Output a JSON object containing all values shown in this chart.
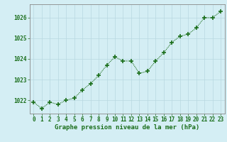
{
  "x": [
    0,
    1,
    2,
    3,
    4,
    5,
    6,
    7,
    8,
    9,
    10,
    11,
    12,
    13,
    14,
    15,
    16,
    17,
    18,
    19,
    20,
    21,
    22,
    23
  ],
  "y": [
    1021.9,
    1021.6,
    1021.9,
    1021.8,
    1022.0,
    1022.1,
    1022.5,
    1022.8,
    1023.2,
    1023.7,
    1024.1,
    1023.9,
    1023.9,
    1023.3,
    1023.4,
    1023.9,
    1024.3,
    1024.8,
    1025.1,
    1025.2,
    1025.5,
    1026.0,
    1026.0,
    1026.3
  ],
  "line_color": "#1a6e1a",
  "marker": "+",
  "markersize": 4,
  "markeredgewidth": 1.2,
  "bg_color": "#d4eef4",
  "grid_color": "#b8d8e0",
  "ylabel_ticks": [
    1022,
    1023,
    1024,
    1025,
    1026
  ],
  "xlabel_label": "Graphe pression niveau de la mer (hPa)",
  "ylim": [
    1021.35,
    1026.65
  ],
  "xlim": [
    -0.5,
    23.5
  ],
  "tick_color": "#1a6e1a",
  "axis_color": "#888888",
  "tick_fontsize": 5.5,
  "xlabel_fontsize": 6.5
}
